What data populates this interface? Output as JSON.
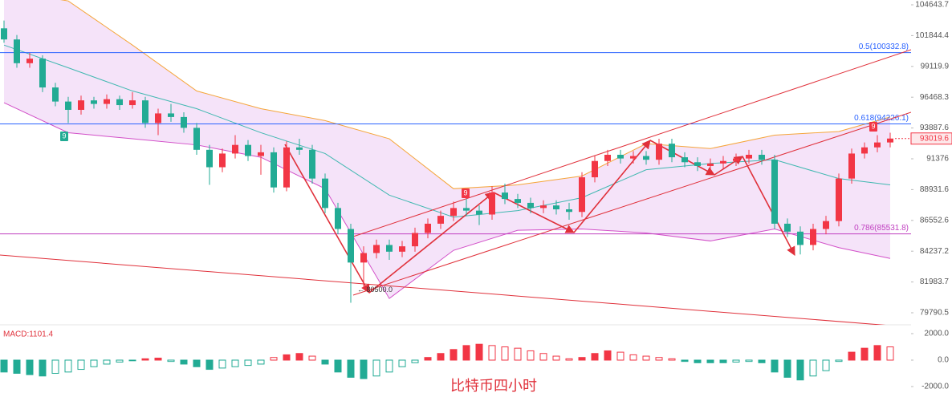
{
  "chart_data": {
    "type": "candlestick",
    "title": "比特币四小时",
    "log_scale": true,
    "up_color": "#f23645",
    "down_color": "#22ab94",
    "ylim": [
      79790.5,
      104643.7
    ],
    "yticks": [
      104643.7,
      101844.4,
      99119.9,
      96468.3,
      93887.6,
      91376.0,
      88931.6,
      86552.6,
      84237.2,
      81983.7,
      79790.5
    ],
    "last_price": 93019.6,
    "candles": [
      [
        102500,
        103200,
        101200,
        101500
      ],
      [
        101500,
        101900,
        99000,
        99400
      ],
      [
        99400,
        100300,
        99000,
        99800
      ],
      [
        99800,
        100100,
        96900,
        97300
      ],
      [
        97300,
        97700,
        95700,
        96100
      ],
      [
        96100,
        96500,
        94300,
        95400
      ],
      [
        95400,
        96600,
        95000,
        96200
      ],
      [
        96200,
        96500,
        95500,
        95900
      ],
      [
        95900,
        96700,
        95500,
        96300
      ],
      [
        96300,
        96600,
        95400,
        95800
      ],
      [
        95800,
        96900,
        95500,
        96200
      ],
      [
        96200,
        96500,
        93900,
        94300
      ],
      [
        94300,
        95500,
        93300,
        95100
      ],
      [
        95100,
        95900,
        94400,
        94800
      ],
      [
        94800,
        95200,
        93500,
        93900
      ],
      [
        93900,
        94300,
        91700,
        92100
      ],
      [
        92100,
        92500,
        89300,
        90700
      ],
      [
        90700,
        92200,
        90300,
        91800
      ],
      [
        91800,
        93300,
        91400,
        92500
      ],
      [
        92500,
        92900,
        91200,
        91600
      ],
      [
        91600,
        92500,
        90100,
        91900
      ],
      [
        91900,
        92300,
        88700,
        89100
      ],
      [
        89100,
        92800,
        88800,
        92300
      ],
      [
        92300,
        93000,
        91700,
        92100
      ],
      [
        92100,
        92500,
        89400,
        89800
      ],
      [
        89800,
        90200,
        87100,
        87500
      ],
      [
        87500,
        87900,
        85500,
        85900
      ],
      [
        85900,
        86300,
        80500,
        83400
      ],
      [
        83400,
        84600,
        81500,
        84100
      ],
      [
        84100,
        85100,
        83700,
        84700
      ],
      [
        84700,
        85100,
        83600,
        84200
      ],
      [
        84200,
        85000,
        83800,
        84600
      ],
      [
        84600,
        86000,
        84200,
        85600
      ],
      [
        85600,
        86700,
        85200,
        86300
      ],
      [
        86300,
        87300,
        85900,
        86900
      ],
      [
        86900,
        88000,
        86500,
        87500
      ],
      [
        87500,
        88200,
        86900,
        87300
      ],
      [
        87300,
        87700,
        86200,
        87000
      ],
      [
        87000,
        89200,
        86600,
        88700
      ],
      [
        88700,
        89400,
        87800,
        88200
      ],
      [
        88200,
        88600,
        87500,
        87900
      ],
      [
        87900,
        88300,
        87100,
        87500
      ],
      [
        87500,
        88100,
        87100,
        87700
      ],
      [
        87700,
        88100,
        87000,
        87400
      ],
      [
        87400,
        87900,
        86600,
        87200
      ],
      [
        87200,
        90300,
        86800,
        89900
      ],
      [
        89900,
        91600,
        89500,
        91200
      ],
      [
        91200,
        92100,
        90800,
        91700
      ],
      [
        91700,
        92100,
        91000,
        91400
      ],
      [
        91400,
        92000,
        91000,
        91600
      ],
      [
        91600,
        92000,
        90900,
        91300
      ],
      [
        91300,
        93000,
        90900,
        92600
      ],
      [
        92600,
        93000,
        91100,
        91500
      ],
      [
        91500,
        91900,
        90700,
        91100
      ],
      [
        91100,
        91500,
        90400,
        90800
      ],
      [
        90800,
        91400,
        90400,
        91000
      ],
      [
        91000,
        91600,
        90600,
        91200
      ],
      [
        91200,
        91800,
        90800,
        91400
      ],
      [
        91400,
        92100,
        91000,
        91700
      ],
      [
        91700,
        92100,
        90900,
        91300
      ],
      [
        91300,
        91700,
        85900,
        86300
      ],
      [
        86300,
        86700,
        85300,
        85700
      ],
      [
        85700,
        86100,
        84000,
        84700
      ],
      [
        84700,
        86300,
        84300,
        85900
      ],
      [
        85900,
        86900,
        85500,
        86500
      ],
      [
        86500,
        90200,
        86100,
        89800
      ],
      [
        89800,
        92200,
        89400,
        91800
      ],
      [
        91800,
        92700,
        91400,
        92300
      ],
      [
        92300,
        93300,
        91900,
        92700
      ],
      [
        92700,
        93500,
        92300,
        93019.6
      ]
    ],
    "band_x": [
      0,
      5,
      10,
      15,
      20,
      25,
      30,
      35,
      40,
      45,
      50,
      55,
      60,
      65,
      69
    ],
    "band_upper": [
      106000,
      105000,
      101000,
      97000,
      95500,
      94500,
      93000,
      89000,
      89300,
      90000,
      92600,
      92200,
      93300,
      93600,
      94800
    ],
    "band_middle": [
      101000,
      99000,
      97000,
      95500,
      93500,
      91800,
      88500,
      86800,
      87300,
      88300,
      90500,
      91000,
      91300,
      89800,
      89300
    ],
    "band_lower": [
      96000,
      93500,
      93000,
      92500,
      91500,
      89000,
      80800,
      84300,
      85800,
      85900,
      85600,
      85000,
      85900,
      84500,
      83700
    ],
    "fib_levels": [
      {
        "label": "0.5(100332.8)",
        "value": 100332.8,
        "color": "#2962ff"
      },
      {
        "label": "0.618(94226.1)",
        "value": 94226.1,
        "color": "#2962ff"
      },
      {
        "label": "0.786(85531.8)",
        "value": 85531.8,
        "color": "#c040c0"
      }
    ],
    "low_label": "← 80500.0",
    "low_value": 80500,
    "td_marks": [
      "9",
      "9",
      "9"
    ],
    "macd_label": "MACD:1101.4",
    "macd_ylim": [
      -2000,
      2000
    ],
    "macd_yticks": [
      {
        "value": 2000,
        "label": "2000.0"
      },
      {
        "value": 0,
        "label": "0.0"
      },
      {
        "value": -2000,
        "label": "-2000.0"
      }
    ],
    "macd_hist": [
      -900,
      -1000,
      -1100,
      -1200,
      -1000,
      -900,
      -700,
      -500,
      -300,
      -150,
      -50,
      100,
      150,
      -100,
      -300,
      -500,
      -700,
      -600,
      -500,
      -400,
      -300,
      200,
      400,
      500,
      300,
      -300,
      -900,
      -1300,
      -1400,
      -1200,
      -900,
      -500,
      -200,
      200,
      500,
      800,
      1100,
      1200,
      1100,
      1000,
      900,
      700,
      500,
      300,
      100,
      200,
      500,
      700,
      600,
      400,
      300,
      200,
      100,
      -100,
      -200,
      -200,
      -200,
      -150,
      -100,
      -200,
      -900,
      -1300,
      -1500,
      -1200,
      -800,
      -100,
      600,
      900,
      1101.4,
      1000
    ]
  }
}
